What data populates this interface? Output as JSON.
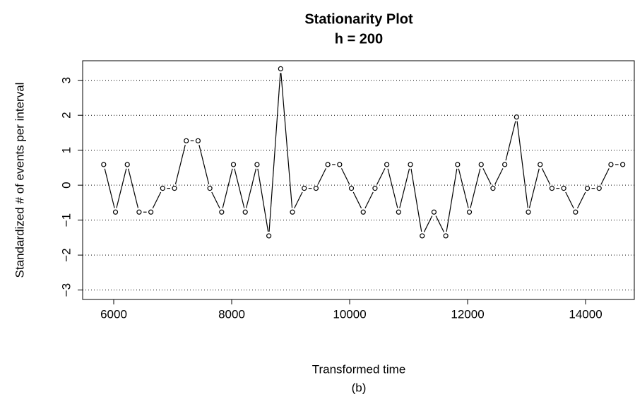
{
  "chart_data": {
    "type": "line",
    "title": "Stationarity Plot",
    "subtitle": "h = 200",
    "x_label": "Transformed time",
    "y_label": "Standardized # of events per interval",
    "caption": "(b)",
    "x": [
      5830,
      6030,
      6230,
      6430,
      6630,
      6830,
      7030,
      7230,
      7430,
      7630,
      7830,
      8030,
      8230,
      8430,
      8630,
      8830,
      9030,
      9230,
      9430,
      9630,
      9830,
      10030,
      10230,
      10430,
      10630,
      10830,
      11030,
      11230,
      11430,
      11630,
      11830,
      12030,
      12230,
      12430,
      12630,
      12830,
      13030,
      13230,
      13430,
      13630,
      13830,
      14030,
      14230,
      14430,
      14630
    ],
    "values": [
      0.59,
      -0.77,
      0.59,
      -0.77,
      -0.77,
      -0.09,
      -0.09,
      1.27,
      1.27,
      -0.09,
      -0.77,
      0.59,
      -0.77,
      0.59,
      -1.45,
      3.33,
      -0.77,
      -0.09,
      -0.09,
      0.59,
      0.59,
      -0.09,
      -0.77,
      -0.09,
      0.59,
      -0.77,
      0.59,
      -1.45,
      -0.77,
      -1.45,
      0.59,
      -0.77,
      0.59,
      -0.09,
      0.59,
      1.95,
      -0.77,
      0.59,
      -0.09,
      -0.09,
      -0.77,
      -0.09,
      -0.09,
      0.59,
      0.59
    ],
    "color": "#000000",
    "xlim": [
      5473,
      14826
    ],
    "ylim": [
      -3.27,
      3.56
    ],
    "xticks": [
      6000,
      8000,
      10000,
      12000,
      14000
    ],
    "yticks": [
      {
        "value": -3,
        "label": "−3"
      },
      {
        "value": -2,
        "label": "−2"
      },
      {
        "value": -1,
        "label": "−1"
      },
      0,
      1,
      2,
      3
    ],
    "grid": true
  }
}
